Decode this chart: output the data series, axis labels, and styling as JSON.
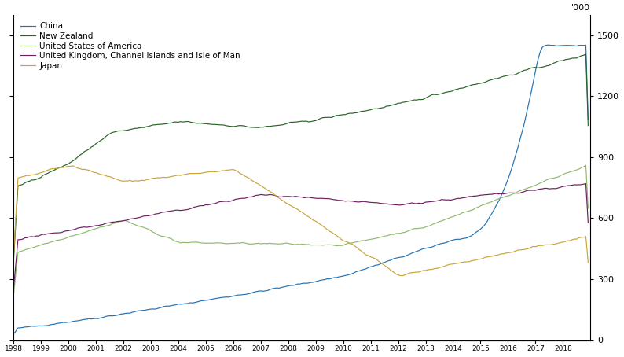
{
  "ylabel_right": "'000",
  "ylim": [
    0,
    1600
  ],
  "yticks": [
    0,
    300,
    600,
    900,
    1200,
    1500
  ],
  "background_color": "#ffffff",
  "series": {
    "China": {
      "color": "#2272b5"
    },
    "New Zealand": {
      "color": "#276425"
    },
    "United States of America": {
      "color": "#8fba6e"
    },
    "United Kingdom, Channel Islands and Isle of Man": {
      "color": "#6e2060"
    },
    "Japan": {
      "color": "#c9a53a"
    }
  }
}
